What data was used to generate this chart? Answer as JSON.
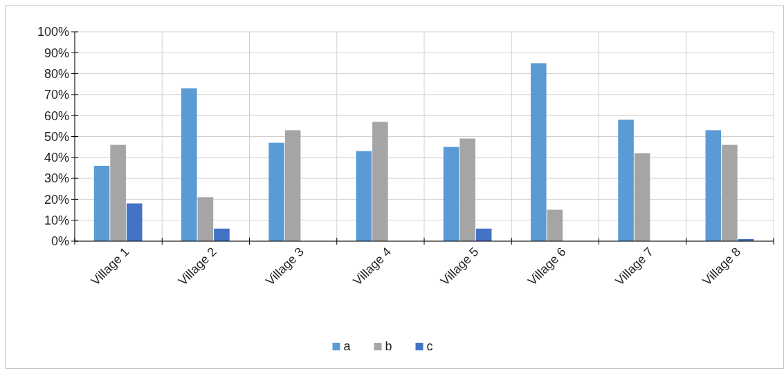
{
  "chart_data": {
    "type": "bar",
    "categories": [
      "Village 1",
      "Village 2",
      "Village 3",
      "Village 4",
      "Village 5",
      "Village 6",
      "Village 7",
      "Village 8"
    ],
    "series": [
      {
        "name": "a",
        "color": "#5b9bd5",
        "values": [
          36,
          73,
          47,
          43,
          45,
          85,
          58,
          53
        ]
      },
      {
        "name": "b",
        "color": "#a5a5a5",
        "values": [
          46,
          21,
          53,
          57,
          49,
          15,
          42,
          46
        ]
      },
      {
        "name": "c",
        "color": "#4472c4",
        "values": [
          18,
          6,
          0,
          0,
          6,
          0,
          0,
          1
        ]
      }
    ],
    "ylim": [
      0,
      100
    ],
    "yticks": [
      {
        "value": 0,
        "label": "0%"
      },
      {
        "value": 10,
        "label": "10%"
      },
      {
        "value": 20,
        "label": "20%"
      },
      {
        "value": 30,
        "label": "30%"
      },
      {
        "value": 40,
        "label": "40%"
      },
      {
        "value": 50,
        "label": "50%"
      },
      {
        "value": 60,
        "label": "60%"
      },
      {
        "value": 70,
        "label": "70%"
      },
      {
        "value": 80,
        "label": "80%"
      },
      {
        "value": 90,
        "label": "90%"
      },
      {
        "value": 100,
        "label": "100%"
      }
    ],
    "grid": true,
    "legend": "bottom"
  }
}
